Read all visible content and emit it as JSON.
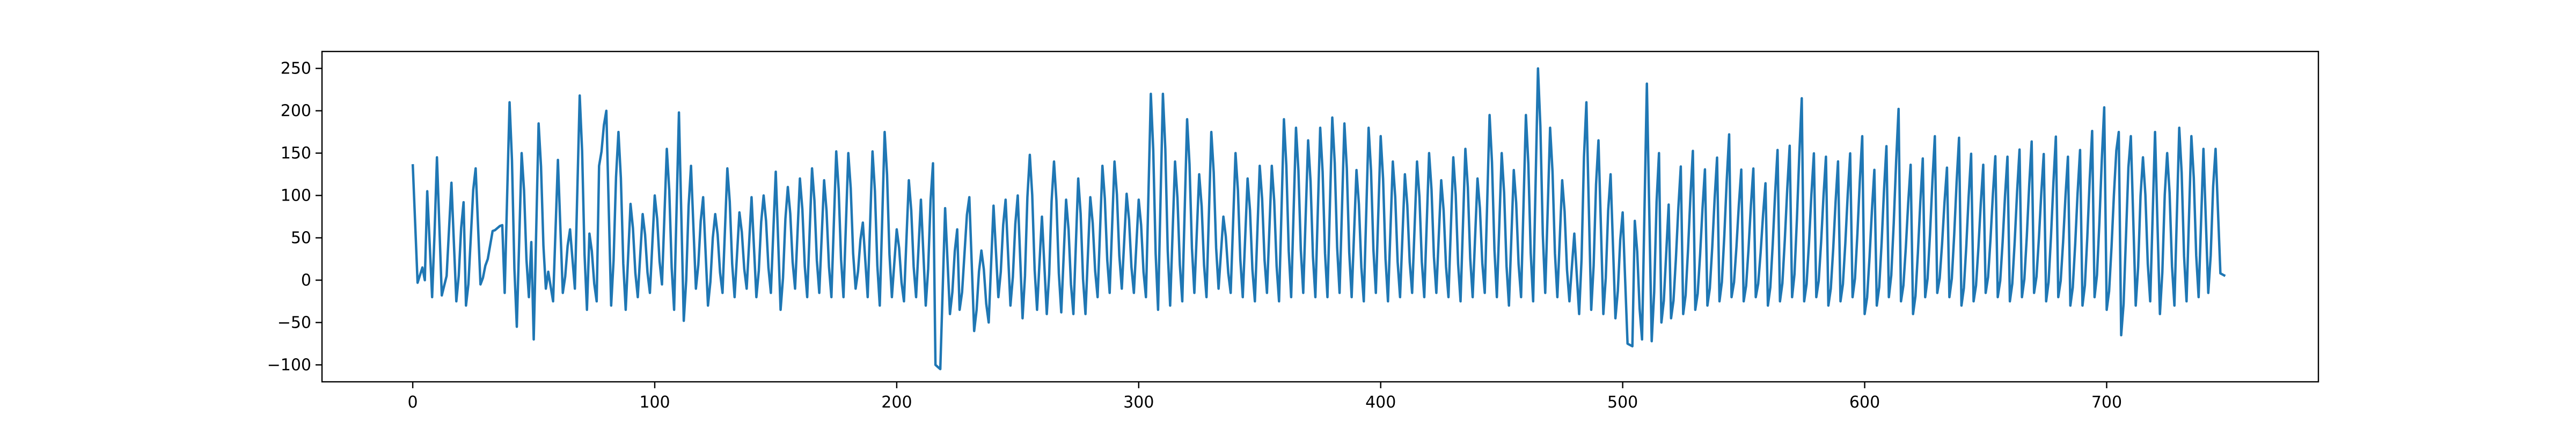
{
  "chart_data": {
    "type": "line",
    "title": "",
    "xlabel": "",
    "ylabel": "",
    "xlim": [
      -37.5,
      787.5
    ],
    "ylim": [
      -120,
      270
    ],
    "x_ticks": [
      0,
      100,
      200,
      300,
      400,
      500,
      600,
      700
    ],
    "x_tick_labels": [
      "0",
      "100",
      "200",
      "300",
      "400",
      "500",
      "600",
      "700"
    ],
    "y_ticks": [
      -100,
      -50,
      0,
      50,
      100,
      150,
      200,
      250
    ],
    "y_tick_labels": [
      "−100",
      "−50",
      "0",
      "50",
      "100",
      "150",
      "200",
      "250"
    ],
    "grid": false,
    "legend": "none",
    "series_color": "#1f77b4",
    "n_points": 750,
    "peaks": [
      [
        0,
        137
      ],
      [
        4,
        15
      ],
      [
        6,
        105
      ],
      [
        9,
        55
      ],
      [
        10,
        145
      ],
      [
        14,
        5
      ],
      [
        16,
        115
      ],
      [
        21,
        92
      ],
      [
        26,
        132
      ],
      [
        31,
        25
      ],
      [
        33,
        58
      ],
      [
        37,
        65
      ],
      [
        40,
        210
      ],
      [
        45,
        150
      ],
      [
        49,
        45
      ],
      [
        52,
        185
      ],
      [
        56,
        10
      ],
      [
        60,
        142
      ],
      [
        65,
        60
      ],
      [
        69,
        218
      ],
      [
        73,
        55
      ],
      [
        77,
        135
      ],
      [
        80,
        200
      ],
      [
        85,
        175
      ],
      [
        90,
        90
      ],
      [
        95,
        78
      ],
      [
        100,
        100
      ],
      [
        105,
        155
      ],
      [
        110,
        198
      ],
      [
        115,
        135
      ],
      [
        120,
        98
      ],
      [
        125,
        78
      ],
      [
        130,
        132
      ],
      [
        135,
        80
      ],
      [
        140,
        98
      ],
      [
        145,
        100
      ],
      [
        150,
        128
      ],
      [
        155,
        110
      ],
      [
        160,
        120
      ],
      [
        165,
        132
      ],
      [
        170,
        118
      ],
      [
        175,
        152
      ],
      [
        180,
        150
      ],
      [
        186,
        68
      ],
      [
        190,
        152
      ],
      [
        195,
        175
      ],
      [
        200,
        60
      ],
      [
        205,
        118
      ],
      [
        210,
        95
      ],
      [
        215,
        138
      ],
      [
        220,
        85
      ],
      [
        225,
        60
      ],
      [
        230,
        98
      ],
      [
        235,
        35
      ],
      [
        240,
        88
      ],
      [
        245,
        95
      ],
      [
        250,
        100
      ],
      [
        255,
        148
      ],
      [
        260,
        75
      ],
      [
        265,
        140
      ],
      [
        270,
        95
      ],
      [
        275,
        120
      ],
      [
        280,
        98
      ],
      [
        285,
        135
      ],
      [
        290,
        140
      ],
      [
        295,
        102
      ],
      [
        300,
        95
      ],
      [
        305,
        220
      ],
      [
        310,
        220
      ],
      [
        315,
        140
      ],
      [
        320,
        190
      ],
      [
        325,
        125
      ],
      [
        330,
        175
      ],
      [
        335,
        75
      ],
      [
        340,
        150
      ],
      [
        345,
        120
      ],
      [
        350,
        135
      ],
      [
        355,
        135
      ],
      [
        360,
        190
      ],
      [
        365,
        180
      ],
      [
        370,
        165
      ],
      [
        375,
        180
      ],
      [
        380,
        192
      ],
      [
        385,
        185
      ],
      [
        390,
        130
      ],
      [
        395,
        180
      ],
      [
        400,
        170
      ],
      [
        405,
        140
      ],
      [
        410,
        125
      ],
      [
        415,
        140
      ],
      [
        420,
        150
      ],
      [
        425,
        118
      ],
      [
        430,
        145
      ],
      [
        435,
        155
      ],
      [
        440,
        120
      ],
      [
        445,
        195
      ],
      [
        450,
        150
      ],
      [
        455,
        130
      ],
      [
        460,
        195
      ],
      [
        465,
        250
      ],
      [
        470,
        180
      ],
      [
        475,
        118
      ],
      [
        480,
        55
      ],
      [
        485,
        210
      ],
      [
        490,
        165
      ],
      [
        495,
        125
      ],
      [
        500,
        80
      ],
      [
        505,
        70
      ],
      [
        510,
        232
      ],
      [
        515,
        150
      ],
      [
        520,
        115
      ],
      [
        525,
        155
      ],
      [
        530,
        175
      ],
      [
        535,
        150
      ],
      [
        540,
        165
      ],
      [
        545,
        195
      ],
      [
        550,
        148
      ],
      [
        555,
        150
      ],
      [
        560,
        130
      ],
      [
        565,
        175
      ],
      [
        570,
        180
      ],
      [
        575,
        242
      ],
      [
        580,
        170
      ],
      [
        585,
        165
      ],
      [
        590,
        160
      ],
      [
        595,
        170
      ],
      [
        600,
        192
      ],
      [
        605,
        150
      ],
      [
        610,
        180
      ],
      [
        615,
        228
      ],
      [
        620,
        155
      ],
      [
        625,
        165
      ],
      [
        630,
        192
      ],
      [
        635,
        150
      ],
      [
        640,
        190
      ],
      [
        645,
        170
      ],
      [
        650,
        155
      ],
      [
        655,
        165
      ],
      [
        660,
        165
      ],
      [
        665,
        175
      ],
      [
        670,
        185
      ],
      [
        675,
        168
      ],
      [
        680,
        192
      ],
      [
        685,
        165
      ],
      [
        690,
        175
      ],
      [
        695,
        200
      ],
      [
        700,
        230
      ],
      [
        705,
        175
      ],
      [
        710,
        170
      ],
      [
        715,
        145
      ],
      [
        720,
        175
      ],
      [
        725,
        150
      ],
      [
        730,
        180
      ],
      [
        735,
        170
      ],
      [
        740,
        155
      ],
      [
        745,
        155
      ]
    ],
    "troughs": [
      [
        2,
        -3
      ],
      [
        5,
        0
      ],
      [
        8,
        -20
      ],
      [
        12,
        -18
      ],
      [
        18,
        -25
      ],
      [
        22,
        -30
      ],
      [
        28,
        -5
      ],
      [
        38,
        -15
      ],
      [
        43,
        -55
      ],
      [
        48,
        -20
      ],
      [
        50,
        -70
      ],
      [
        55,
        -10
      ],
      [
        58,
        -25
      ],
      [
        62,
        -15
      ],
      [
        67,
        -10
      ],
      [
        72,
        -35
      ],
      [
        76,
        -25
      ],
      [
        82,
        -30
      ],
      [
        88,
        -35
      ],
      [
        93,
        -20
      ],
      [
        98,
        -15
      ],
      [
        103,
        -5
      ],
      [
        108,
        -35
      ],
      [
        112,
        -48
      ],
      [
        117,
        -10
      ],
      [
        122,
        -30
      ],
      [
        128,
        -15
      ],
      [
        133,
        -20
      ],
      [
        138,
        -10
      ],
      [
        142,
        -20
      ],
      [
        148,
        -15
      ],
      [
        152,
        -35
      ],
      [
        158,
        -10
      ],
      [
        163,
        -20
      ],
      [
        168,
        -15
      ],
      [
        173,
        -20
      ],
      [
        178,
        -20
      ],
      [
        183,
        -10
      ],
      [
        188,
        -20
      ],
      [
        193,
        -30
      ],
      [
        198,
        -20
      ],
      [
        203,
        -25
      ],
      [
        208,
        -20
      ],
      [
        212,
        -30
      ],
      [
        216,
        -100
      ],
      [
        218,
        -105
      ],
      [
        222,
        -40
      ],
      [
        226,
        -35
      ],
      [
        232,
        -60
      ],
      [
        238,
        -50
      ],
      [
        242,
        -20
      ],
      [
        247,
        -30
      ],
      [
        252,
        -45
      ],
      [
        258,
        -35
      ],
      [
        262,
        -40
      ],
      [
        268,
        -38
      ],
      [
        273,
        -40
      ],
      [
        278,
        -40
      ],
      [
        283,
        -20
      ],
      [
        288,
        -15
      ],
      [
        293,
        -10
      ],
      [
        298,
        -15
      ],
      [
        303,
        -20
      ],
      [
        308,
        -35
      ],
      [
        313,
        -30
      ],
      [
        318,
        -25
      ],
      [
        323,
        -15
      ],
      [
        328,
        -20
      ],
      [
        333,
        -10
      ],
      [
        338,
        -15
      ],
      [
        343,
        -20
      ],
      [
        348,
        -25
      ],
      [
        353,
        -15
      ],
      [
        358,
        -25
      ],
      [
        363,
        -20
      ],
      [
        368,
        -15
      ],
      [
        373,
        -20
      ],
      [
        378,
        -20
      ],
      [
        383,
        -15
      ],
      [
        388,
        -20
      ],
      [
        393,
        -25
      ],
      [
        398,
        -15
      ],
      [
        403,
        -25
      ],
      [
        408,
        -20
      ],
      [
        413,
        -15
      ],
      [
        418,
        -20
      ],
      [
        423,
        -15
      ],
      [
        428,
        -20
      ],
      [
        433,
        -25
      ],
      [
        438,
        -20
      ],
      [
        443,
        -15
      ],
      [
        448,
        -20
      ],
      [
        453,
        -30
      ],
      [
        458,
        -20
      ],
      [
        463,
        -25
      ],
      [
        468,
        -15
      ],
      [
        473,
        -20
      ],
      [
        478,
        -25
      ],
      [
        482,
        -40
      ],
      [
        487,
        -35
      ],
      [
        492,
        -40
      ],
      [
        497,
        -45
      ],
      [
        502,
        -75
      ],
      [
        504,
        -78
      ],
      [
        508,
        -70
      ],
      [
        512,
        -72
      ],
      [
        516,
        -50
      ],
      [
        520,
        -45
      ],
      [
        525,
        -40
      ],
      [
        530,
        -35
      ],
      [
        535,
        -30
      ],
      [
        540,
        -25
      ],
      [
        545,
        -20
      ],
      [
        550,
        -25
      ],
      [
        555,
        -20
      ],
      [
        560,
        -30
      ],
      [
        565,
        -25
      ],
      [
        570,
        -20
      ],
      [
        575,
        -25
      ],
      [
        580,
        -20
      ],
      [
        585,
        -30
      ],
      [
        590,
        -25
      ],
      [
        595,
        -20
      ],
      [
        600,
        -40
      ],
      [
        605,
        -30
      ],
      [
        610,
        -20
      ],
      [
        615,
        -25
      ],
      [
        620,
        -40
      ],
      [
        625,
        -20
      ],
      [
        630,
        -15
      ],
      [
        635,
        -20
      ],
      [
        640,
        -30
      ],
      [
        645,
        -25
      ],
      [
        650,
        -15
      ],
      [
        655,
        -20
      ],
      [
        660,
        -25
      ],
      [
        665,
        -20
      ],
      [
        670,
        -15
      ],
      [
        675,
        -25
      ],
      [
        680,
        -20
      ],
      [
        685,
        -30
      ],
      [
        690,
        -30
      ],
      [
        695,
        -20
      ],
      [
        700,
        -35
      ],
      [
        706,
        -65
      ],
      [
        712,
        -30
      ],
      [
        718,
        -25
      ],
      [
        722,
        -40
      ],
      [
        728,
        -30
      ],
      [
        733,
        -25
      ],
      [
        738,
        -20
      ],
      [
        742,
        -15
      ],
      [
        747,
        8
      ],
      [
        749,
        5
      ]
    ]
  }
}
